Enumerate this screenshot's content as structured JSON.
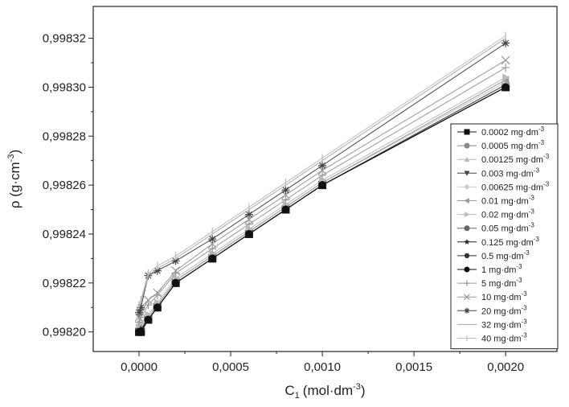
{
  "chart_data": {
    "type": "line",
    "xlabel": "C",
    "xlabel_sub": "1",
    "xlabel_unit": "(mol·dm",
    "xlabel_unit_sup": "-3",
    "xlabel_close": ")",
    "ylabel": "ρ (g·cm",
    "ylabel_sup": "-3",
    "ylabel_close": ")",
    "xlim": [
      -0.00025,
      0.00228
    ],
    "ylim": [
      0.998192,
      0.998333
    ],
    "x_ticks": [
      0.0,
      0.0005,
      0.001,
      0.0015,
      0.002
    ],
    "x_tick_labels": [
      "0,0000",
      "0,0005",
      "0,0010",
      "0,0015",
      "0,0020"
    ],
    "y_ticks": [
      0.9982,
      0.99822,
      0.99824,
      0.99826,
      0.99828,
      0.9983,
      0.99832
    ],
    "y_tick_labels": [
      "0,99820",
      "0,99822",
      "0,99824",
      "0,99826",
      "0,99828",
      "0,99830",
      "0,99832"
    ],
    "legend_position": "right",
    "x": [
      0.0,
      1e-05,
      5e-05,
      0.0001,
      0.0002,
      0.0004,
      0.0006,
      0.0008,
      0.001,
      0.002
    ],
    "series": [
      {
        "name": "0.0002 mg·dm",
        "sup": "-3",
        "marker": "square",
        "color": "#111111",
        "values": [
          0.9982,
          0.9982,
          0.998205,
          0.99821,
          0.99822,
          0.99823,
          0.99824,
          0.99825,
          0.99826,
          0.9983
        ]
      },
      {
        "name": "0.0005 mg·dm",
        "sup": "-3",
        "marker": "circle",
        "color": "#888888",
        "values": [
          0.9982,
          0.998201,
          0.998205,
          0.99821,
          0.99822,
          0.99823,
          0.99824,
          0.99825,
          0.99826,
          0.998301
        ]
      },
      {
        "name": "0.00125 mg·dm",
        "sup": "-3",
        "marker": "triangle-up",
        "color": "#bbbbbb",
        "values": [
          0.998201,
          0.998202,
          0.998206,
          0.998211,
          0.998221,
          0.998231,
          0.998241,
          0.998251,
          0.998261,
          0.998302
        ]
      },
      {
        "name": "0.003 mg·dm",
        "sup": "-3",
        "marker": "triangle-down",
        "color": "#444444",
        "values": [
          0.9982,
          0.998201,
          0.998205,
          0.99821,
          0.99822,
          0.99823,
          0.99824,
          0.99825,
          0.99826,
          0.998301
        ]
      },
      {
        "name": "0.00625 mg·dm",
        "sup": "-3",
        "marker": "diamond",
        "color": "#cccccc",
        "values": [
          0.998201,
          0.998202,
          0.998206,
          0.998211,
          0.998221,
          0.998231,
          0.998241,
          0.998251,
          0.998261,
          0.998302
        ]
      },
      {
        "name": "0.01 mg·dm",
        "sup": "-3",
        "marker": "triangle-left",
        "color": "#999999",
        "values": [
          0.998201,
          0.998202,
          0.998206,
          0.998211,
          0.998221,
          0.998231,
          0.998241,
          0.998251,
          0.998261,
          0.998303
        ]
      },
      {
        "name": "0.02 mg·dm",
        "sup": "-3",
        "marker": "triangle-right",
        "color": "#bbbbbb",
        "values": [
          0.998202,
          0.998203,
          0.998207,
          0.998212,
          0.998222,
          0.998232,
          0.998242,
          0.998252,
          0.998262,
          0.998304
        ]
      },
      {
        "name": "0.05 mg·dm",
        "sup": "-3",
        "marker": "circle",
        "color": "#666666",
        "values": [
          0.9982,
          0.9982,
          0.998205,
          0.99821,
          0.99822,
          0.99823,
          0.99824,
          0.99825,
          0.99826,
          0.9983
        ]
      },
      {
        "name": "0.125 mg·dm",
        "sup": "-3",
        "marker": "star",
        "color": "#222222",
        "values": [
          0.9982,
          0.998201,
          0.998205,
          0.99821,
          0.99822,
          0.99823,
          0.99824,
          0.99825,
          0.99826,
          0.9983
        ]
      },
      {
        "name": "0.5 mg·dm",
        "sup": "-3",
        "marker": "hexagon",
        "color": "#333333",
        "values": [
          0.9982,
          0.9982,
          0.998205,
          0.99821,
          0.99822,
          0.99823,
          0.99824,
          0.99825,
          0.99826,
          0.9983
        ]
      },
      {
        "name": "1 mg·dm",
        "sup": "-3",
        "marker": "circle",
        "color": "#111111",
        "values": [
          0.9982,
          0.9982,
          0.998205,
          0.99821,
          0.99822,
          0.99823,
          0.99824,
          0.99825,
          0.99826,
          0.9983
        ]
      },
      {
        "name": "5 mg·dm",
        "sup": "-3",
        "marker": "plus",
        "color": "#999999",
        "values": [
          0.998204,
          0.998206,
          0.998211,
          0.998215,
          0.998224,
          0.998234,
          0.998244,
          0.998254,
          0.998264,
          0.998308
        ]
      },
      {
        "name": "10 mg·dm",
        "sup": "-3",
        "marker": "x",
        "color": "#999999",
        "values": [
          0.998206,
          0.998208,
          0.998213,
          0.998216,
          0.998225,
          0.998236,
          0.998246,
          0.998256,
          0.998266,
          0.998311
        ]
      },
      {
        "name": "20 mg·dm",
        "sup": "-3",
        "marker": "asterisk",
        "color": "#444444",
        "values": [
          0.998208,
          0.99821,
          0.998223,
          0.998225,
          0.998229,
          0.998238,
          0.998248,
          0.998258,
          0.998268,
          0.998318
        ]
      },
      {
        "name": "32 mg·dm",
        "sup": "-3",
        "marker": "none",
        "color": "#aaaaaa",
        "values": [
          0.99821,
          0.998212,
          0.998223,
          0.998226,
          0.99823,
          0.99824,
          0.99825,
          0.99826,
          0.99827,
          0.99832
        ]
      },
      {
        "name": "40 mg·dm",
        "sup": "-3",
        "marker": "vbar",
        "color": "#bbbbbb",
        "values": [
          0.998211,
          0.998213,
          0.998224,
          0.998227,
          0.998231,
          0.998241,
          0.998251,
          0.998261,
          0.998271,
          0.998321
        ]
      }
    ]
  }
}
